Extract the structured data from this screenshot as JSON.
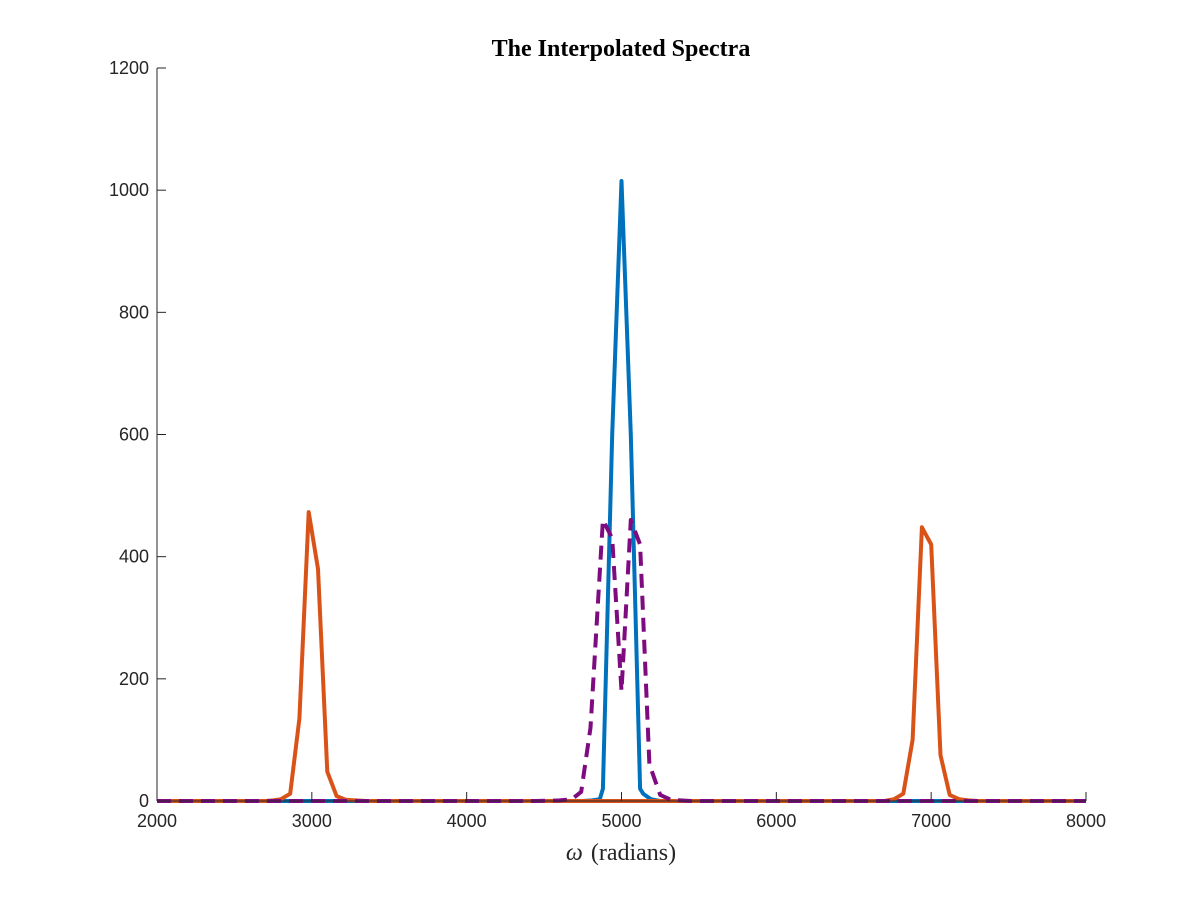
{
  "chart_data": {
    "type": "line",
    "title": "The Interpolated Spectra",
    "xlabel_symbol": "ω",
    "xlabel_text": "(radians)",
    "ylabel": "",
    "xlim": [
      2000,
      8000
    ],
    "ylim": [
      0,
      1200
    ],
    "xticks": [
      2000,
      3000,
      4000,
      5000,
      6000,
      7000,
      8000
    ],
    "yticks": [
      0,
      200,
      400,
      600,
      800,
      1000,
      1200
    ],
    "grid": false,
    "series": [
      {
        "name": "blue",
        "color": "#0072BD",
        "dash": "solid",
        "x": [
          2000,
          4500,
          4750,
          4810,
          4860,
          4880,
          4940,
          5000,
          5060,
          5120,
          5140,
          5190,
          5250,
          5500,
          8000
        ],
        "values": [
          0,
          0,
          0,
          1,
          3,
          20,
          600,
          1015,
          600,
          20,
          12,
          3,
          0,
          0,
          0
        ]
      },
      {
        "name": "orange",
        "color": "#D95319",
        "dash": "solid",
        "x": [
          2000,
          2700,
          2750,
          2800,
          2860,
          2920,
          2980,
          3040,
          3100,
          3160,
          3220,
          3280,
          3350,
          3500,
          6500,
          6700,
          6760,
          6820,
          6880,
          6940,
          7000,
          7060,
          7120,
          7180,
          7240,
          7300,
          7400,
          8000
        ],
        "values": [
          0,
          0,
          1,
          3,
          12,
          135,
          473,
          380,
          48,
          8,
          2,
          1,
          0,
          0,
          0,
          0,
          3,
          12,
          100,
          448,
          420,
          75,
          10,
          3,
          1,
          0,
          0,
          0
        ],
        "name_unused": ""
      },
      {
        "name": "purple",
        "color": "#7E0B80",
        "dash": "dashed",
        "x": [
          2000,
          4450,
          4600,
          4680,
          4740,
          4800,
          4880,
          4940,
          5000,
          5060,
          5120,
          5180,
          5250,
          5320,
          5450,
          8000
        ],
        "values": [
          0,
          0,
          1,
          3,
          15,
          120,
          460,
          430,
          180,
          460,
          420,
          60,
          10,
          2,
          0,
          0
        ]
      }
    ]
  }
}
